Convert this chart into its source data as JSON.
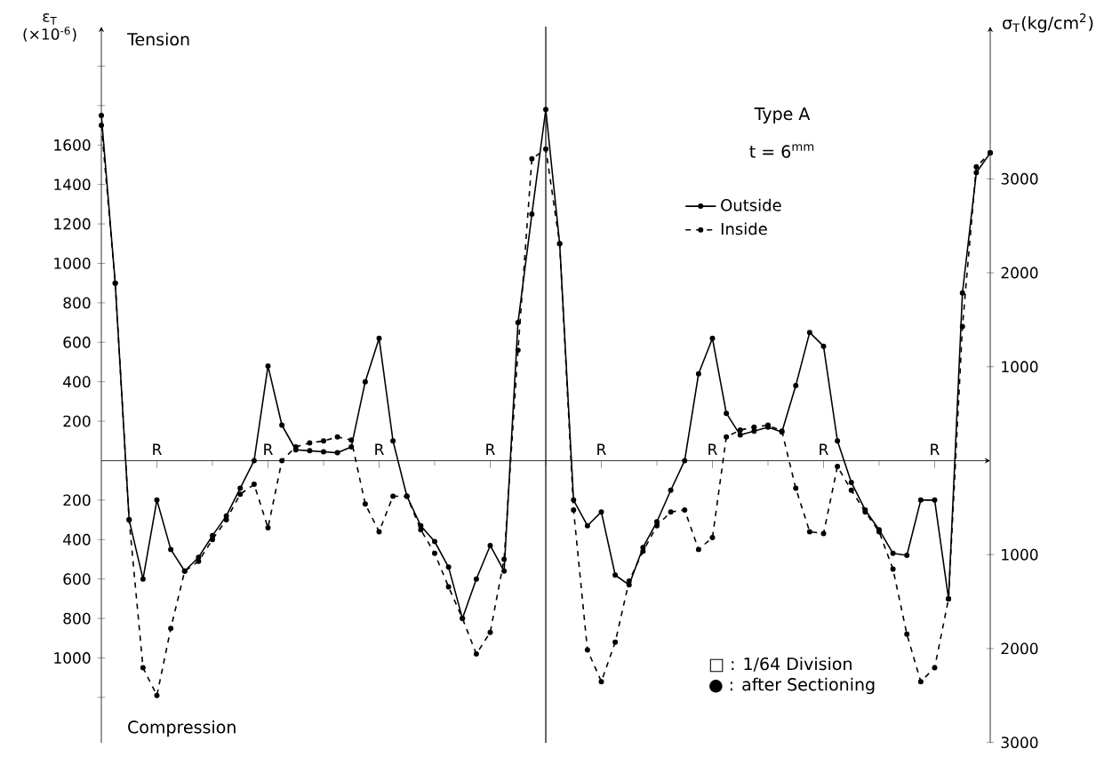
{
  "chart_data": {
    "type": "line",
    "ylabel": "ε$_{T}$ (×10$^{-6}$)",
    "y2label": "σ$_{T}$(kg/cm$^{2}$)",
    "annotations": [
      "Tension",
      "Compression",
      "Type A",
      "t = 6$^{mm}$",
      "□ : 1/64 Division",
      "● : after Sectioning"
    ],
    "categories": [
      null,
      null,
      null,
      null,
      "R",
      null,
      null,
      null,
      null,
      null,
      null,
      null,
      "R",
      null,
      null,
      null,
      null,
      null,
      null,
      null,
      "R",
      null,
      null,
      null,
      null,
      null,
      null,
      null,
      "R",
      null,
      null,
      null,
      null,
      null,
      null,
      null,
      "R",
      null,
      null,
      null,
      null,
      null,
      null,
      null,
      "R",
      null,
      null,
      null,
      null,
      null,
      null,
      null,
      "R",
      null,
      null,
      null,
      null,
      null,
      null,
      null,
      "R",
      null,
      null,
      null,
      null
    ],
    "ylim": [
      -1430,
      2200
    ],
    "yticks": [
      {
        "value": -1200,
        "label": null
      },
      {
        "value": -1000,
        "label": "1000"
      },
      {
        "value": -800,
        "label": "800"
      },
      {
        "value": -600,
        "label": "600"
      },
      {
        "value": -400,
        "label": "400"
      },
      {
        "value": -200,
        "label": "200"
      },
      200,
      400,
      600,
      800,
      1000,
      1200,
      1400,
      1600,
      {
        "value": 1800,
        "label": null
      },
      {
        "value": 2000,
        "label": null
      }
    ],
    "y2lim": [
      -3003,
      4620
    ],
    "y2ticks": [
      {
        "value": -3000,
        "label": "3000"
      },
      {
        "value": -2000,
        "label": "2000"
      },
      {
        "value": -1000,
        "label": "1000"
      },
      1000,
      2000,
      3000
    ],
    "legend": "top right",
    "marker": "circle",
    "series": [
      {
        "name": "Outside",
        "color": "#000000",
        "line_style": "solid",
        "values": [
          1750,
          900,
          -300,
          -600,
          -200,
          -450,
          -560,
          -490,
          -380,
          -280,
          -140,
          0,
          480,
          180,
          55,
          50,
          45,
          40,
          70,
          400,
          620,
          100,
          -180,
          -330,
          -410,
          -540,
          -800,
          -600,
          -430,
          -560,
          700,
          1250,
          1780,
          1100,
          -200,
          -330,
          -260,
          -580,
          -630,
          -440,
          -310,
          -150,
          0,
          440,
          620,
          240,
          130,
          150,
          170,
          145,
          380,
          650,
          580,
          100,
          -110,
          -250,
          -350,
          -470,
          -480,
          -200,
          -200,
          -700,
          850,
          1460,
          1560
        ]
      },
      {
        "name": "Inside",
        "color": "#000000",
        "line_style": "dashed",
        "values": [
          1700,
          900,
          -300,
          -1050,
          -1190,
          -850,
          -560,
          -510,
          -400,
          -300,
          -170,
          -120,
          -340,
          0,
          70,
          90,
          100,
          120,
          105,
          -220,
          -360,
          -180,
          -180,
          -350,
          -470,
          -640,
          -800,
          -980,
          -870,
          -500,
          560,
          1530,
          1580,
          1100,
          -250,
          -960,
          -1120,
          -920,
          -610,
          -460,
          -330,
          -260,
          -250,
          -450,
          -390,
          120,
          155,
          170,
          180,
          150,
          -140,
          -360,
          -370,
          -30,
          -150,
          -260,
          -360,
          -550,
          -880,
          -1120,
          -1050,
          -700,
          680,
          1490,
          1560
        ]
      }
    ]
  }
}
